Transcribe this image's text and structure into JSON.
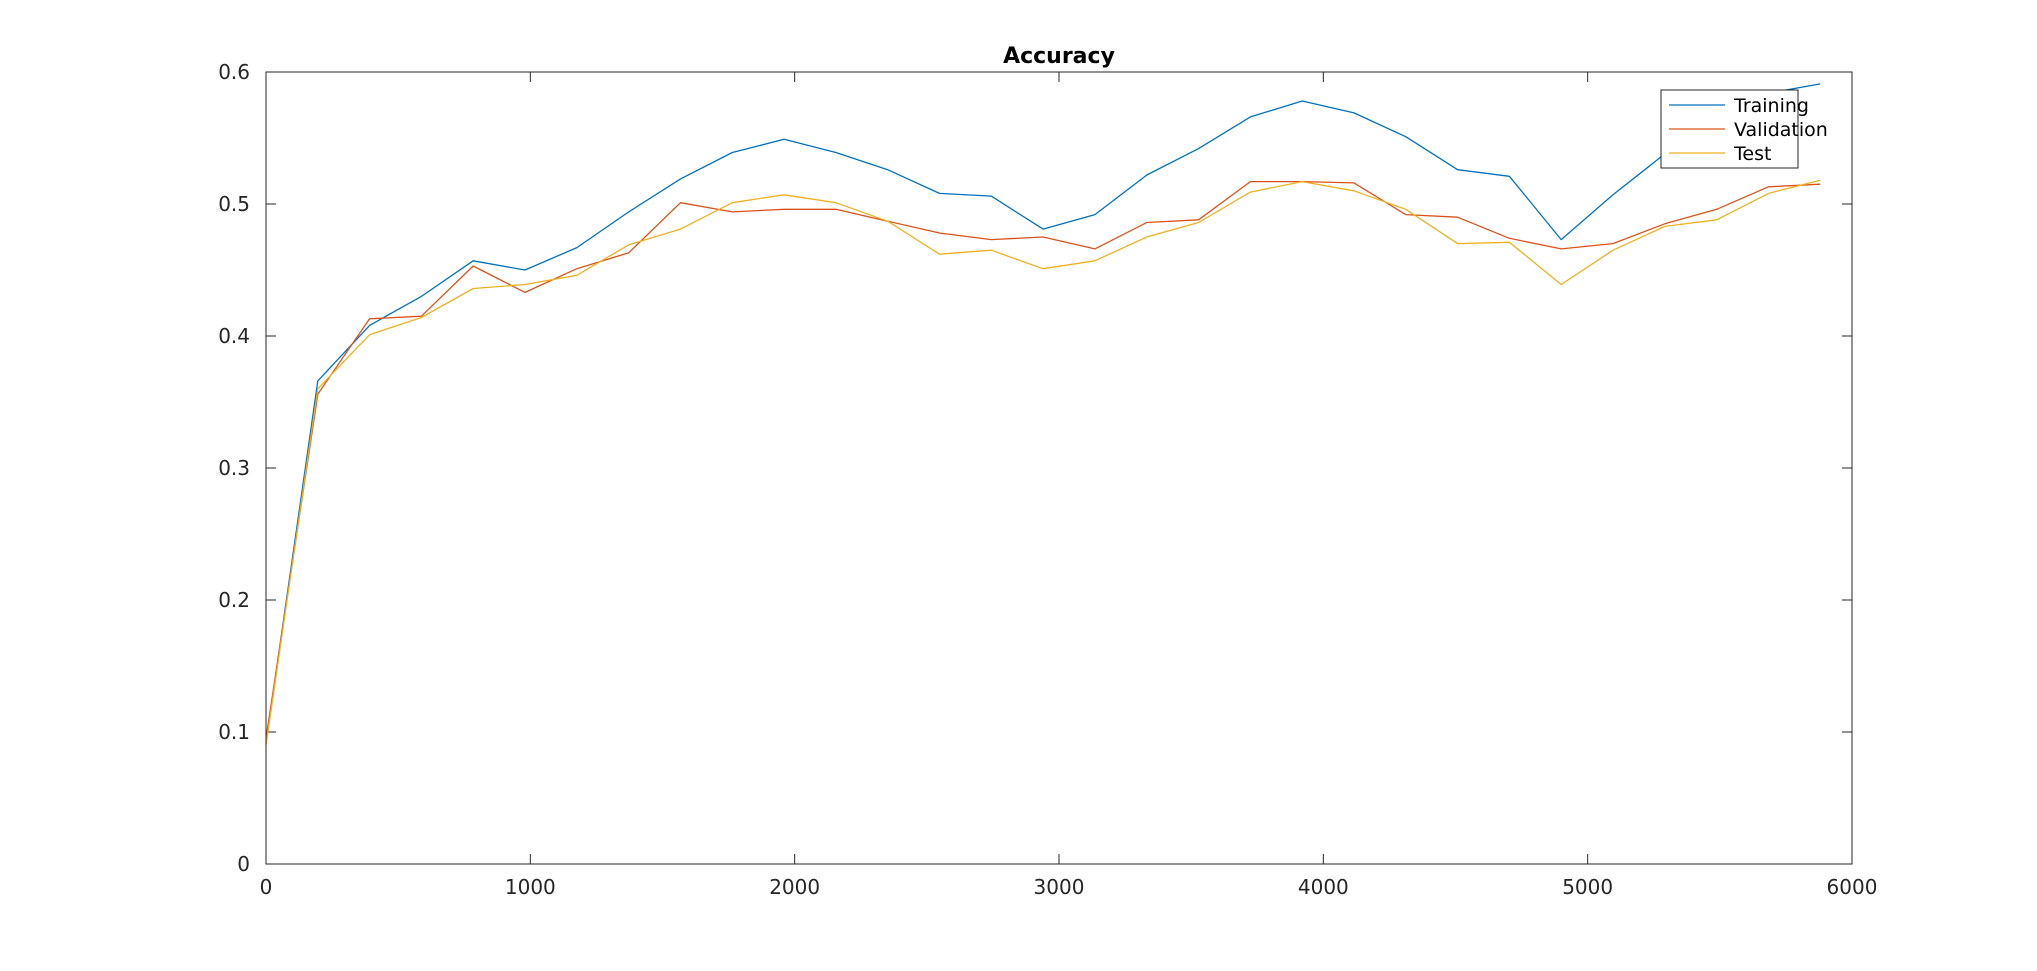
{
  "chart_data": {
    "type": "line",
    "title": "Accuracy",
    "xlabel": "",
    "ylabel": "",
    "xlim": [
      0,
      6000
    ],
    "ylim": [
      0,
      0.6
    ],
    "xticks": [
      0,
      1000,
      2000,
      3000,
      4000,
      5000,
      6000
    ],
    "xtick_labels": [
      "0",
      "1000",
      "2000",
      "3000",
      "4000",
      "5000",
      "6000"
    ],
    "yticks": [
      0,
      0.1,
      0.2,
      0.3,
      0.4,
      0.5,
      0.6
    ],
    "ytick_labels": [
      "0",
      "0.1",
      "0.2",
      "0.3",
      "0.4",
      "0.5",
      "0.6"
    ],
    "grid": false,
    "legend_position": "top-right",
    "x": [
      0,
      196,
      392,
      588,
      784,
      980,
      1176,
      1372,
      1568,
      1764,
      1960,
      2156,
      2352,
      2548,
      2744,
      2940,
      3136,
      3332,
      3528,
      3724,
      3920,
      4116,
      4312,
      4508,
      4704,
      4900,
      5096,
      5292,
      5488,
      5684,
      5880
    ],
    "series": [
      {
        "name": "Training",
        "color": "#0072bd",
        "values": [
          0.092,
          0.366,
          0.408,
          0.43,
          0.457,
          0.45,
          0.467,
          0.494,
          0.519,
          0.539,
          0.549,
          0.539,
          0.526,
          0.508,
          0.506,
          0.481,
          0.492,
          0.522,
          0.542,
          0.566,
          0.578,
          0.569,
          0.551,
          0.526,
          0.521,
          0.473,
          0.507,
          0.538,
          0.568,
          0.584,
          0.591
        ]
      },
      {
        "name": "Validation",
        "color": "#d95319",
        "values": [
          0.095,
          0.356,
          0.413,
          0.415,
          0.453,
          0.433,
          0.451,
          0.463,
          0.501,
          0.494,
          0.496,
          0.496,
          0.487,
          0.478,
          0.473,
          0.475,
          0.466,
          0.486,
          0.488,
          0.517,
          0.517,
          0.516,
          0.492,
          0.49,
          0.474,
          0.466,
          0.47,
          0.485,
          0.496,
          0.513,
          0.515
        ]
      },
      {
        "name": "Test",
        "color": "#edb120",
        "values": [
          0.09,
          0.36,
          0.401,
          0.414,
          0.436,
          0.439,
          0.446,
          0.469,
          0.481,
          0.501,
          0.507,
          0.501,
          0.487,
          0.462,
          0.465,
          0.451,
          0.457,
          0.475,
          0.486,
          0.509,
          0.517,
          0.51,
          0.496,
          0.47,
          0.471,
          0.439,
          0.465,
          0.483,
          0.488,
          0.508,
          0.518
        ]
      }
    ]
  }
}
